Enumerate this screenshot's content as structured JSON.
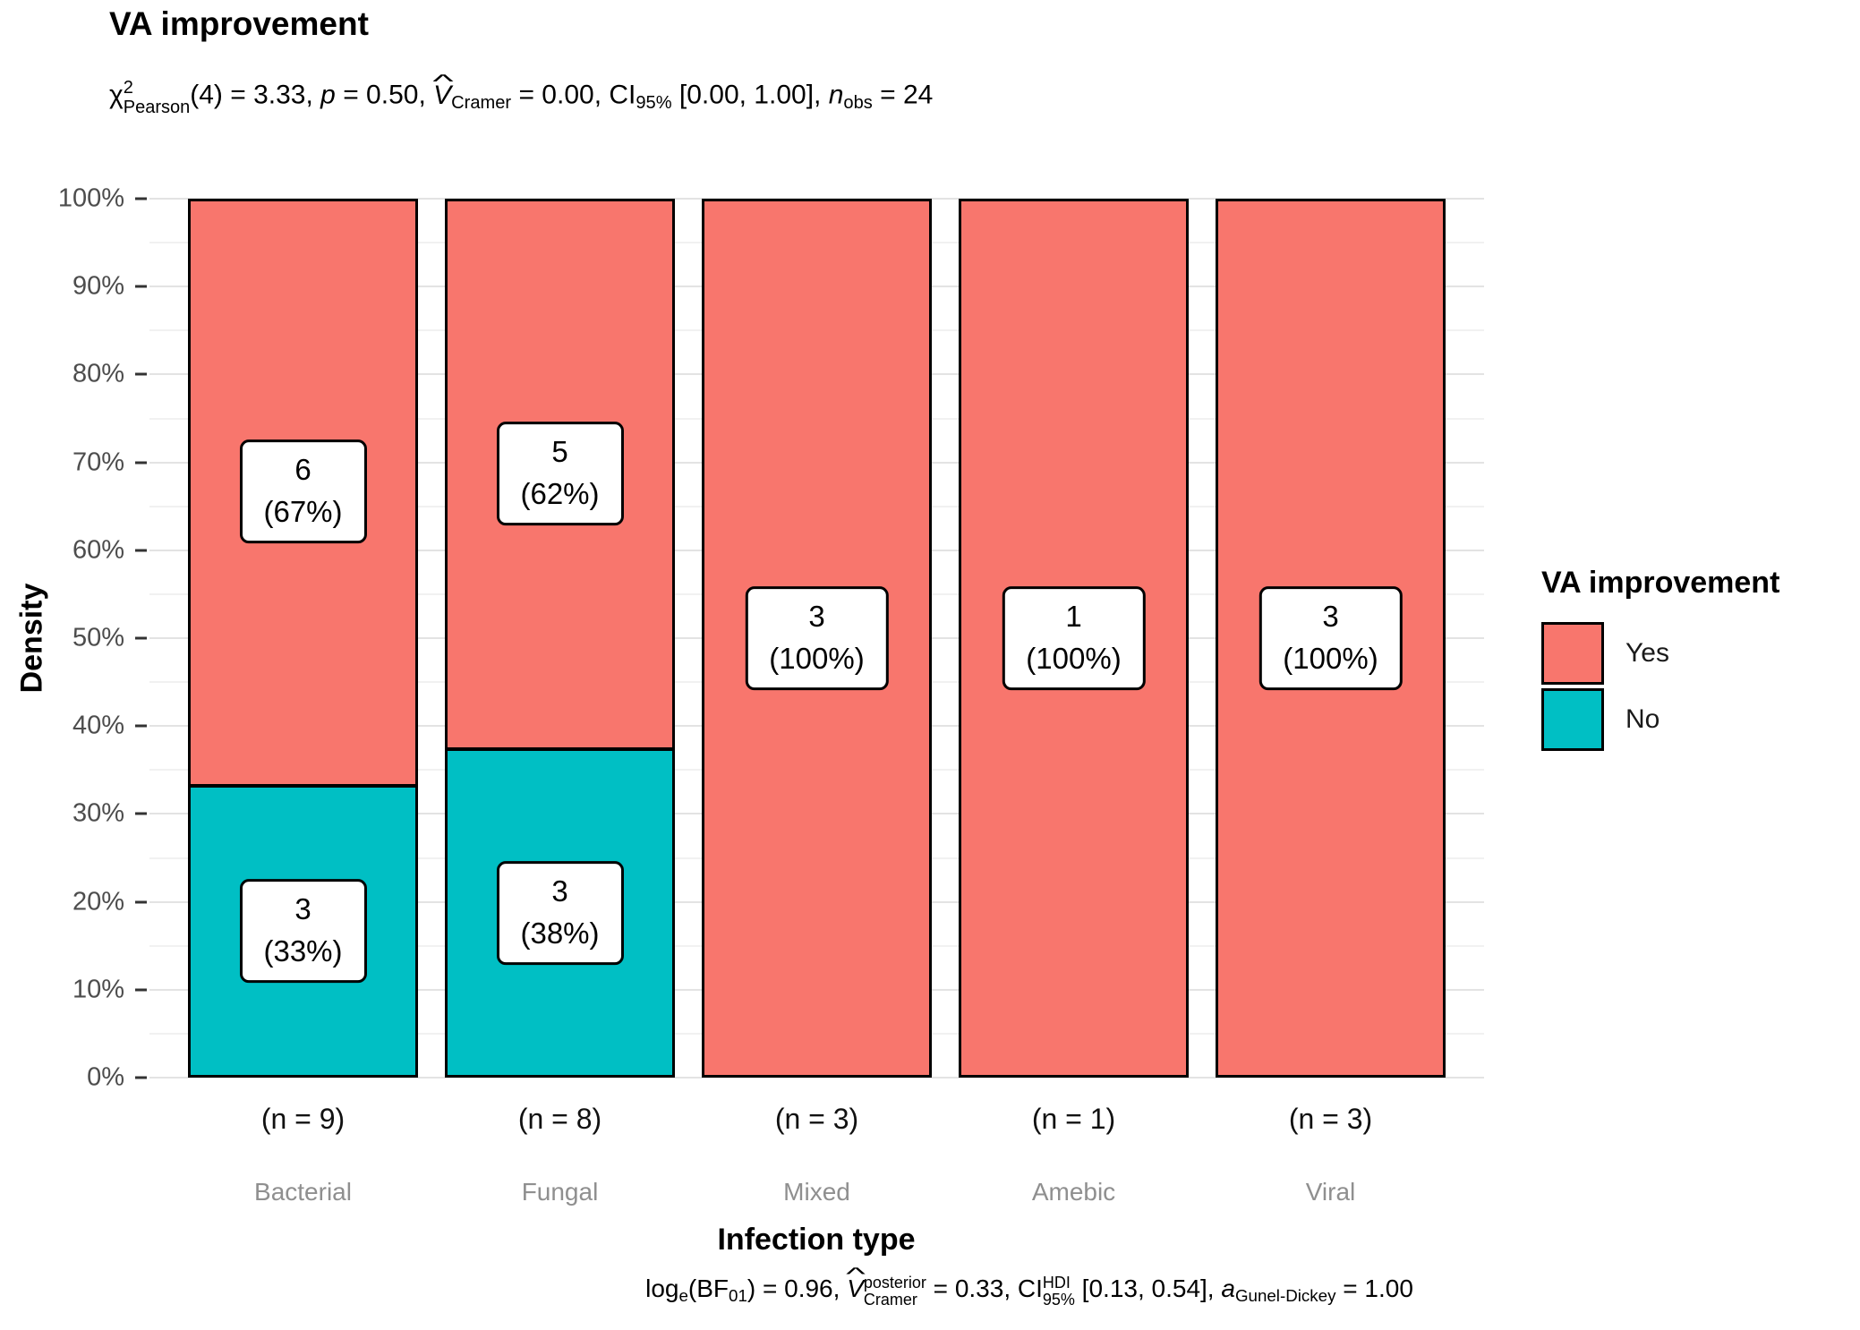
{
  "title": "VA improvement",
  "subtitle": {
    "chi": "χ",
    "chi_sup": "2",
    "chi_sub": "Pearson",
    "seg1": "(4) = 3.33, ",
    "p": "p",
    "seg2": " = 0.50, ",
    "vhat": "^",
    "v": "V",
    "v_sub": "Cramer",
    "seg3": " = 0.00, CI",
    "ci_sub": "95%",
    "seg4": " [0.00, 1.00], ",
    "n": "n",
    "n_sub": "obs",
    "seg5": " = 24"
  },
  "caption": {
    "log": "log",
    "log_sub": "e",
    "seg1": "(BF",
    "bf_sub": "01",
    "seg2": ") = 0.96, ",
    "vhat": "^",
    "v": "V",
    "v_sup": "posterior",
    "v_sub": "Cramer",
    "seg3": " = 0.33, CI",
    "ci_sup": "HDI",
    "ci_sub": "95%",
    "seg4": " [0.13, 0.54], ",
    "a": "a",
    "a_sub": "Gunel-Dickey",
    "seg5": " = 1.00"
  },
  "axes": {
    "y_title": "Density",
    "x_title": "Infection type"
  },
  "legend": {
    "title": "VA improvement",
    "items": [
      {
        "label": "Yes",
        "color": "#F8766D"
      },
      {
        "label": "No",
        "color": "#00BFC4"
      }
    ]
  },
  "chart_data": {
    "type": "bar",
    "stacked": true,
    "y_unit": "percent",
    "title": "VA improvement",
    "xlabel": "Infection type",
    "ylabel": "Density",
    "ylim": [
      0,
      100
    ],
    "yticks": [
      "0%",
      "10%",
      "20%",
      "30%",
      "40%",
      "50%",
      "60%",
      "70%",
      "80%",
      "90%",
      "100%"
    ],
    "gridlines": {
      "major_step": 10,
      "minor_step": 5
    },
    "legend_position": "right",
    "legend_title": "VA improvement",
    "series_colors": {
      "Yes": "#F8766D",
      "No": "#00BFC4"
    },
    "categories": [
      "Bacterial",
      "Fungal",
      "Mixed",
      "Amebic",
      "Viral"
    ],
    "n_labels": [
      "(n = 9)",
      "(n = 8)",
      "(n = 3)",
      "(n = 1)",
      "(n = 3)"
    ],
    "bars": [
      {
        "category": "Bacterial",
        "n_label": "(n = 9)",
        "segments": [
          {
            "series": "Yes",
            "pct": 66.67,
            "count": "6",
            "pct_label": "(67%)"
          },
          {
            "series": "No",
            "pct": 33.33,
            "count": "3",
            "pct_label": "(33%)"
          }
        ]
      },
      {
        "category": "Fungal",
        "n_label": "(n = 8)",
        "segments": [
          {
            "series": "Yes",
            "pct": 62.5,
            "count": "5",
            "pct_label": "(62%)"
          },
          {
            "series": "No",
            "pct": 37.5,
            "count": "3",
            "pct_label": "(38%)"
          }
        ]
      },
      {
        "category": "Mixed",
        "n_label": "(n = 3)",
        "segments": [
          {
            "series": "Yes",
            "pct": 100,
            "count": "3",
            "pct_label": "(100%)"
          }
        ]
      },
      {
        "category": "Amebic",
        "n_label": "(n = 1)",
        "segments": [
          {
            "series": "Yes",
            "pct": 100,
            "count": "1",
            "pct_label": "(100%)"
          }
        ]
      },
      {
        "category": "Viral",
        "n_label": "(n = 3)",
        "segments": [
          {
            "series": "Yes",
            "pct": 100,
            "count": "3",
            "pct_label": "(100%)"
          }
        ]
      }
    ]
  }
}
